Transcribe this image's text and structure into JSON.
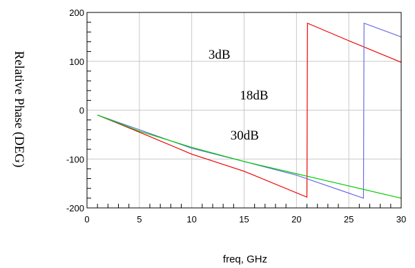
{
  "chart_data": {
    "type": "line",
    "xlabel": "freq, GHz",
    "ylabel": "Relative Phase (DEG)",
    "xlim": [
      0,
      30
    ],
    "ylim": [
      -200,
      200
    ],
    "x_ticks": [
      0,
      5,
      10,
      15,
      20,
      25,
      30
    ],
    "x_tick_labels": [
      "0",
      "5",
      "10",
      "15",
      "20",
      "25",
      "30"
    ],
    "y_ticks": [
      -200,
      -100,
      0,
      100,
      200
    ],
    "y_tick_labels": [
      "-200",
      "-100",
      "0",
      "100",
      "200"
    ],
    "grid": true,
    "series": [
      {
        "color": "#ee0000",
        "x": [
          1,
          5,
          10,
          15,
          21,
          21.05,
          25,
          30
        ],
        "y": [
          -10,
          -45,
          -90,
          -125,
          -178,
          178,
          142,
          98
        ]
      },
      {
        "color": "#6a6ae6",
        "x": [
          1,
          5,
          10,
          15,
          20,
          26.4,
          26.45,
          30
        ],
        "y": [
          -10,
          -40,
          -78,
          -105,
          -133,
          -180,
          178,
          150
        ]
      },
      {
        "color": "#00cc00",
        "x": [
          1,
          5,
          10,
          15,
          20,
          25,
          30
        ],
        "y": [
          -10,
          -43,
          -76,
          -105,
          -130,
          -155,
          -180
        ]
      }
    ],
    "annotations": [
      {
        "text": "3dB",
        "x": 11.6,
        "y": 105
      },
      {
        "text": "18dB",
        "x": 14.6,
        "y": 22
      },
      {
        "text": "30dB",
        "x": 13.7,
        "y": -60
      }
    ]
  }
}
